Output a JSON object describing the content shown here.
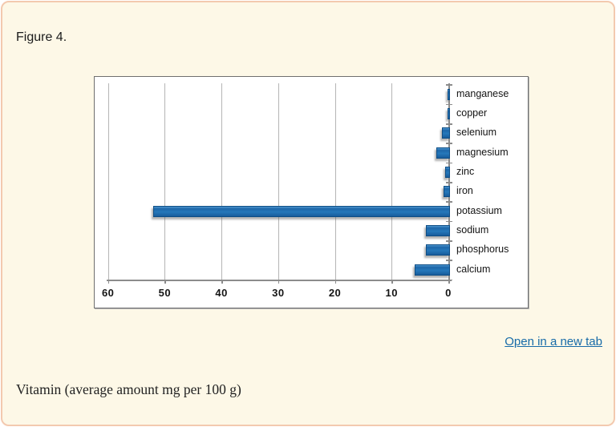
{
  "figure": {
    "label": "Figure 4.",
    "open_link_label": "Open in a new tab",
    "caption": "Vitamin (average amount mg per 100 g)"
  },
  "colors": {
    "card_bg": "#fdf8e7",
    "card_border": "#f3c9af",
    "bar_fill": "#1f6eb0",
    "bar_border": "#0f4e85",
    "gridline": "#b5b5b5",
    "axis": "#8c8c8c",
    "link": "#176ba8"
  },
  "chart_data": {
    "type": "bar",
    "orientation": "horizontal",
    "title": "",
    "xlabel": "",
    "ylabel": "",
    "unit": "mg per 100 g",
    "categories": [
      "manganese",
      "copper",
      "selenium",
      "magnesium",
      "zinc",
      "iron",
      "potassium",
      "sodium",
      "phosphorus",
      "calcium"
    ],
    "values": [
      0.1,
      0.15,
      1.1,
      2.1,
      0.5,
      0.9,
      52,
      4,
      4,
      6
    ],
    "axis_ticks": [
      60,
      50,
      40,
      30,
      20,
      10,
      0
    ],
    "xlim": [
      60,
      0
    ],
    "axis_reversed": true,
    "grid": true,
    "legend": false,
    "category_labels_position": "right"
  }
}
